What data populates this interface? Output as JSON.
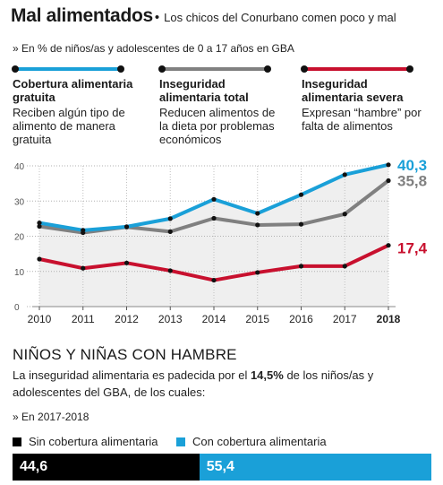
{
  "header": {
    "title": "Mal alimentados",
    "bullet": "•",
    "subtitle": "Los chicos del Conurbano comen poco y mal"
  },
  "note": "» En % de niños/as y adolescentes de 0 a 17 años en GBA",
  "legend": [
    {
      "title": "Cobertura alimentaria gratuita",
      "desc": "Reciben algún tipo de alimento de manera gratuita",
      "color": "#1aa0d8"
    },
    {
      "title": "Inseguridad alimentaria total",
      "desc": "Reducen alimentos de la dieta por problemas económicos",
      "color": "#808080"
    },
    {
      "title": "Inseguridad alimentaria severa",
      "desc": "Expresan “hambre” por falta de alimentos",
      "color": "#c8102e"
    }
  ],
  "chart_data": {
    "type": "line",
    "x": [
      "2010",
      "2011",
      "2012",
      "2013",
      "2014",
      "2015",
      "2016",
      "2017",
      "2018"
    ],
    "ylim": [
      0,
      40
    ],
    "yticks": [
      "0",
      "10",
      "20",
      "30",
      "40"
    ],
    "grid": true,
    "series": [
      {
        "name": "Cobertura alimentaria gratuita",
        "color": "#1aa0d8",
        "values": [
          23.8,
          21.7,
          22.7,
          25.0,
          30.5,
          26.5,
          31.8,
          37.5,
          40.3
        ],
        "end_label": "40,3"
      },
      {
        "name": "Inseguridad alimentaria total",
        "color": "#808080",
        "values": [
          22.8,
          21.0,
          22.6,
          21.3,
          25.1,
          23.2,
          23.4,
          26.3,
          35.8
        ],
        "end_label": "35,8"
      },
      {
        "name": "Inseguridad alimentaria severa",
        "color": "#c8102e",
        "values": [
          13.5,
          10.9,
          12.4,
          10.2,
          7.5,
          9.7,
          11.5,
          11.5,
          17.4
        ],
        "end_label": "17,4"
      }
    ]
  },
  "hunger": {
    "title": "NIÑOS Y NIÑAS CON HAMBRE",
    "text_before": "La inseguridad alimentaria es padecida por el ",
    "text_bold": "14,5%",
    "text_after": " de los niños/as y adolescentes del GBA, de los cuales:",
    "period": "» En 2017-2018",
    "segments": [
      {
        "label": "Sin cobertura alimentaria",
        "value": 44.6,
        "value_label": "44,6",
        "color": "#000000"
      },
      {
        "label": "Con cobertura alimentaria",
        "value": 55.4,
        "value_label": "55,4",
        "color": "#1aa0d8"
      }
    ]
  }
}
